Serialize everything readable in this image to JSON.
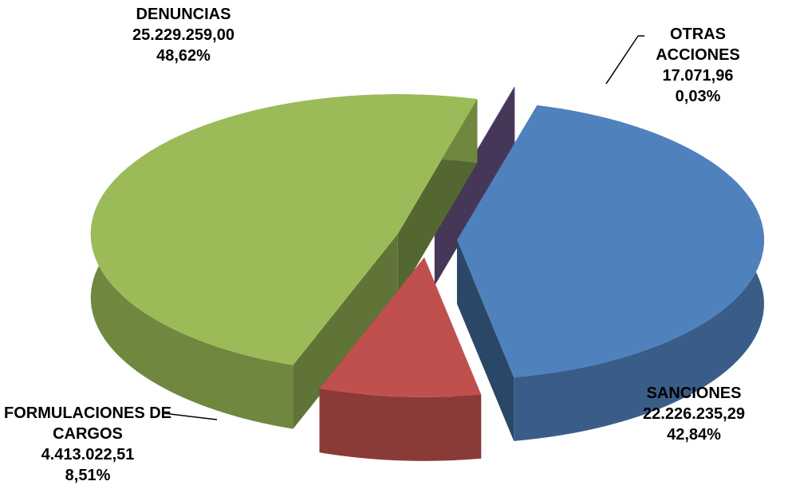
{
  "chart_data": {
    "type": "pie",
    "categories": [
      "OTRAS ACCIONES",
      "SANCIONES",
      "FORMULACIONES DE CARGOS",
      "DENUNCIAS"
    ],
    "values": [
      17071.96,
      22226235.29,
      4413022.51,
      25229259.0
    ],
    "value_labels": [
      "17.071,96",
      "22.226.235,29",
      "4.413.022,51",
      "25.229.259,00"
    ],
    "percents": [
      0.03,
      42.84,
      8.51,
      48.62
    ],
    "percent_labels": [
      "0,03%",
      "42,84%",
      "8,51%",
      "48,62%"
    ],
    "colors": [
      "#8064a2",
      "#4f81bd",
      "#c0504d",
      "#9bbb59"
    ]
  }
}
